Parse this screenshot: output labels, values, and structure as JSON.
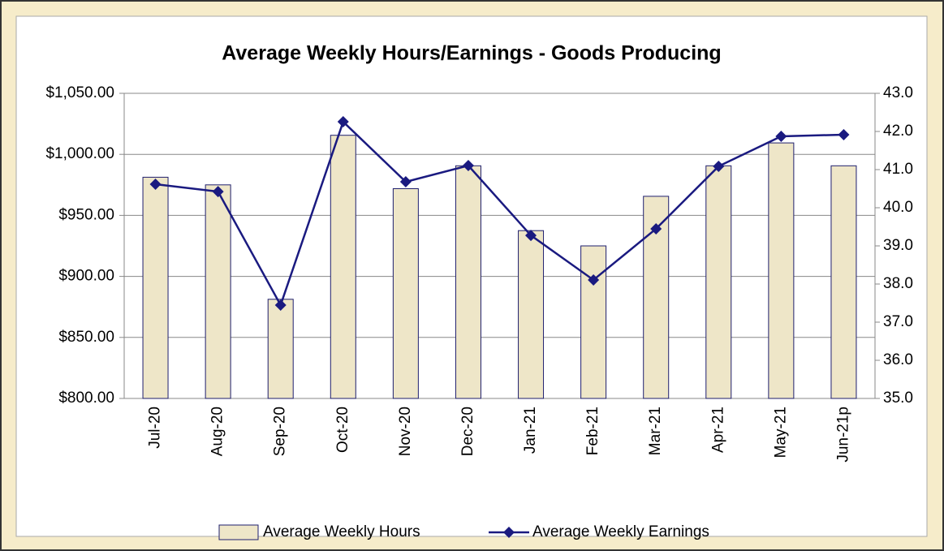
{
  "chart_data": {
    "type": "bar-line",
    "title": "Average Weekly Hours/Earnings - Goods Producing",
    "categories": [
      "Jul-20",
      "Aug-20",
      "Sep-20",
      "Oct-20",
      "Nov-20",
      "Dec-20",
      "Jan-21",
      "Feb-21",
      "Mar-21",
      "Apr-21",
      "May-21",
      "Jun-21p"
    ],
    "series": [
      {
        "name": "Average Weekly Hours",
        "type": "bar",
        "axis": "y2",
        "color": "#eee6c8",
        "edge": "#1f1f6e",
        "values": [
          40.8,
          40.6,
          37.6,
          41.9,
          40.5,
          41.1,
          39.4,
          39.0,
          40.3,
          41.1,
          41.7,
          41.1
        ]
      },
      {
        "name": "Average Weekly Earnings",
        "type": "line",
        "axis": "y",
        "color": "#1a1a80",
        "values": [
          975.5,
          969.5,
          876.5,
          1026.7,
          977.5,
          990.8,
          933.6,
          897.1,
          939.0,
          990.2,
          1014.8,
          1016.1
        ]
      }
    ],
    "ylim": [
      800,
      1050
    ],
    "yticks": [
      {
        "value": 800,
        "label": "$800.00"
      },
      {
        "value": 850,
        "label": "$850.00"
      },
      {
        "value": 900,
        "label": "$900.00"
      },
      {
        "value": 950,
        "label": "$950.00"
      },
      {
        "value": 1000,
        "label": "$1,000.00"
      },
      {
        "value": 1050,
        "label": "$1,050.00"
      }
    ],
    "y2lim": [
      35,
      43
    ],
    "y2ticks": [
      {
        "value": 35,
        "label": "35.0"
      },
      {
        "value": 36,
        "label": "36.0"
      },
      {
        "value": 37,
        "label": "37.0"
      },
      {
        "value": 38,
        "label": "38.0"
      },
      {
        "value": 39,
        "label": "39.0"
      },
      {
        "value": 40,
        "label": "40.0"
      },
      {
        "value": 41,
        "label": "41.0"
      },
      {
        "value": 42,
        "label": "42.0"
      },
      {
        "value": 43,
        "label": "43.0"
      }
    ],
    "grid": true,
    "legend": "bottom"
  }
}
